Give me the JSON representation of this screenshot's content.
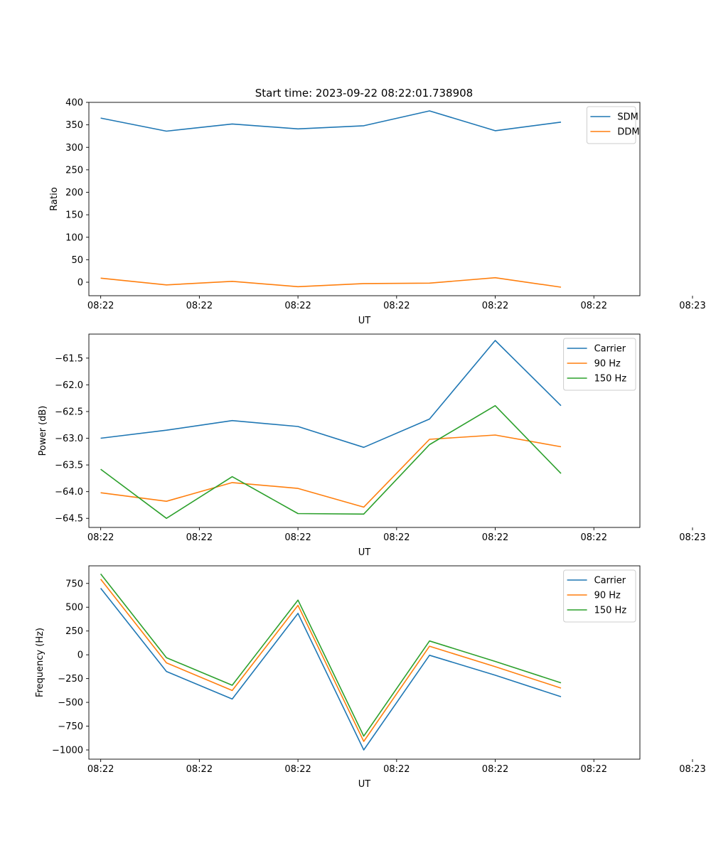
{
  "figure_title": "Start time: 2023-09-22 08:22:01.738908",
  "colors": {
    "blue": "#1f77b4",
    "orange": "#ff7f0e",
    "green": "#2ca02c"
  },
  "chart_data": [
    {
      "type": "line",
      "xlabel": "UT",
      "ylabel": "Ratio",
      "x": [
        1,
        2,
        3,
        4,
        5,
        6,
        7,
        8
      ],
      "xlim": [
        0.82,
        9.2
      ],
      "x_ticks": [
        {
          "value": 1,
          "label": "08:22"
        },
        {
          "value": 2.5,
          "label": "08:22"
        },
        {
          "value": 4,
          "label": "08:22"
        },
        {
          "value": 5.5,
          "label": "08:22"
        },
        {
          "value": 7,
          "label": "08:22"
        },
        {
          "value": 8.5,
          "label": "08:22"
        },
        {
          "value": 10,
          "label": "08:23"
        }
      ],
      "ylim": [
        -30,
        400
      ],
      "y_ticks": [
        {
          "value": 0,
          "label": "0"
        },
        {
          "value": 50,
          "label": "50"
        },
        {
          "value": 100,
          "label": "100"
        },
        {
          "value": 150,
          "label": "150"
        },
        {
          "value": 200,
          "label": "200"
        },
        {
          "value": 250,
          "label": "250"
        },
        {
          "value": 300,
          "label": "300"
        },
        {
          "value": 350,
          "label": "350"
        },
        {
          "value": 400,
          "label": "400"
        }
      ],
      "legend_position": "top-right",
      "series": [
        {
          "name": "SDM",
          "color": "#1f77b4",
          "values": [
            365,
            336,
            352,
            341,
            348,
            381,
            337,
            356
          ]
        },
        {
          "name": "DDM",
          "color": "#ff7f0e",
          "values": [
            9,
            -6,
            2,
            -10,
            -3,
            -2,
            10,
            -11
          ]
        }
      ]
    },
    {
      "type": "line",
      "xlabel": "UT",
      "ylabel": "Power (dB)",
      "x": [
        1,
        2,
        3,
        4,
        5,
        6,
        7,
        8
      ],
      "xlim": [
        0.82,
        9.2
      ],
      "x_ticks": [
        {
          "value": 1,
          "label": "08:22"
        },
        {
          "value": 2.5,
          "label": "08:22"
        },
        {
          "value": 4,
          "label": "08:22"
        },
        {
          "value": 5.5,
          "label": "08:22"
        },
        {
          "value": 7,
          "label": "08:22"
        },
        {
          "value": 8.5,
          "label": "08:22"
        },
        {
          "value": 10,
          "label": "08:23"
        }
      ],
      "ylim": [
        -64.67,
        -61.05
      ],
      "y_ticks": [
        {
          "value": -64.5,
          "label": "−64.5"
        },
        {
          "value": -64.0,
          "label": "−64.0"
        },
        {
          "value": -63.5,
          "label": "−63.5"
        },
        {
          "value": -63.0,
          "label": "−63.0"
        },
        {
          "value": -62.5,
          "label": "−62.5"
        },
        {
          "value": -62.0,
          "label": "−62.0"
        },
        {
          "value": -61.5,
          "label": "−61.5"
        }
      ],
      "legend_position": "top-right",
      "series": [
        {
          "name": "Carrier",
          "color": "#1f77b4",
          "values": [
            -63.0,
            -62.85,
            -62.67,
            -62.78,
            -63.17,
            -62.64,
            -61.17,
            -62.39
          ]
        },
        {
          "name": "90 Hz",
          "color": "#ff7f0e",
          "values": [
            -64.02,
            -64.18,
            -63.83,
            -63.94,
            -64.29,
            -63.02,
            -62.94,
            -63.16
          ]
        },
        {
          "name": "150 Hz",
          "color": "#2ca02c",
          "values": [
            -63.58,
            -64.5,
            -63.72,
            -64.41,
            -64.42,
            -63.12,
            -62.39,
            -63.66
          ]
        }
      ]
    },
    {
      "type": "line",
      "xlabel": "UT",
      "ylabel": "Frequency (Hz)",
      "x": [
        1,
        2,
        3,
        4,
        5,
        6,
        7,
        8
      ],
      "xlim": [
        0.82,
        9.2
      ],
      "x_ticks": [
        {
          "value": 1,
          "label": "08:22"
        },
        {
          "value": 2.5,
          "label": "08:22"
        },
        {
          "value": 4,
          "label": "08:22"
        },
        {
          "value": 5.5,
          "label": "08:22"
        },
        {
          "value": 7,
          "label": "08:22"
        },
        {
          "value": 8.5,
          "label": "08:22"
        },
        {
          "value": 10,
          "label": "08:23"
        }
      ],
      "ylim": [
        -1097,
        935
      ],
      "y_ticks": [
        {
          "value": -1000,
          "label": "−1000"
        },
        {
          "value": -750,
          "label": "−750"
        },
        {
          "value": -500,
          "label": "−500"
        },
        {
          "value": -250,
          "label": "−250"
        },
        {
          "value": 0,
          "label": "0"
        },
        {
          "value": 250,
          "label": "250"
        },
        {
          "value": 500,
          "label": "500"
        },
        {
          "value": 750,
          "label": "750"
        }
      ],
      "legend_position": "top-right",
      "series": [
        {
          "name": "Carrier",
          "color": "#1f77b4",
          "values": [
            700,
            -175,
            -465,
            435,
            -1000,
            -5,
            -215,
            -440
          ]
        },
        {
          "name": "90 Hz",
          "color": "#ff7f0e",
          "values": [
            795,
            -85,
            -375,
            520,
            -910,
            90,
            -125,
            -350
          ]
        },
        {
          "name": "150 Hz",
          "color": "#2ca02c",
          "values": [
            850,
            -30,
            -320,
            575,
            -855,
            145,
            -70,
            -295
          ]
        }
      ]
    }
  ]
}
